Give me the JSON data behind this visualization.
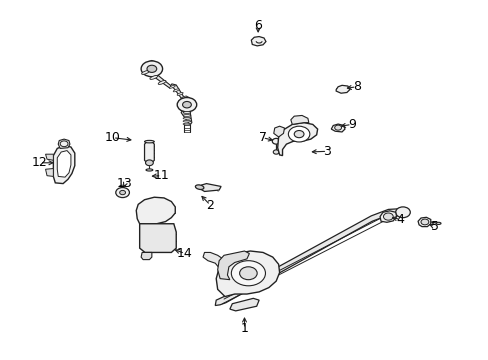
{
  "bg_color": "#ffffff",
  "line_color": "#222222",
  "label_color": "#000000",
  "figsize": [
    4.89,
    3.6
  ],
  "dpi": 100,
  "label_positions": {
    "1": [
      0.5,
      0.085,
      0.5,
      0.13
    ],
    "2": [
      0.43,
      0.43,
      0.405,
      0.465
    ],
    "3": [
      0.67,
      0.58,
      0.628,
      0.578
    ],
    "4": [
      0.82,
      0.39,
      0.793,
      0.398
    ],
    "5": [
      0.89,
      0.37,
      0.87,
      0.382
    ],
    "6": [
      0.528,
      0.93,
      0.528,
      0.898
    ],
    "7": [
      0.537,
      0.618,
      0.568,
      0.608
    ],
    "8": [
      0.73,
      0.76,
      0.7,
      0.754
    ],
    "9": [
      0.72,
      0.655,
      0.688,
      0.648
    ],
    "10": [
      0.23,
      0.618,
      0.278,
      0.61
    ],
    "11": [
      0.33,
      0.512,
      0.3,
      0.51
    ],
    "12": [
      0.08,
      0.548,
      0.118,
      0.548
    ],
    "13": [
      0.255,
      0.49,
      0.248,
      0.468
    ],
    "14": [
      0.378,
      0.295,
      0.348,
      0.31
    ]
  }
}
